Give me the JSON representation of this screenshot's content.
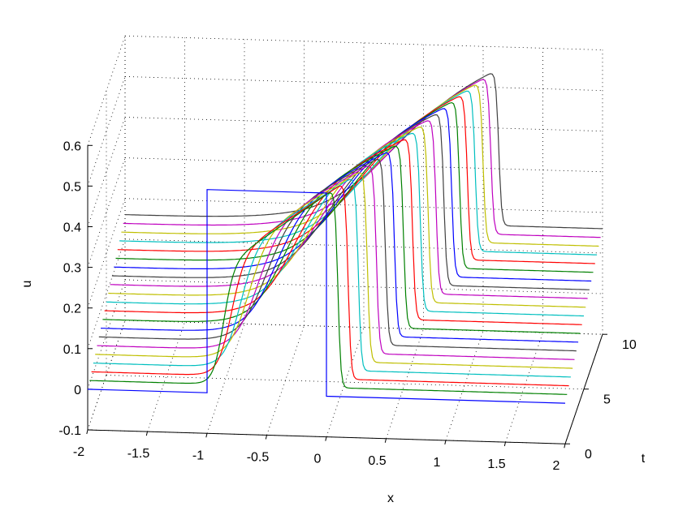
{
  "chart_data": {
    "type": "line",
    "projection": "3d",
    "title": "",
    "xlabel": "x",
    "ylabel": "t",
    "zlabel": "u",
    "xlim": [
      -2,
      2
    ],
    "ylim": [
      0,
      10
    ],
    "zlim": [
      -0.1,
      0.6
    ],
    "grid": true,
    "legend": "none",
    "x_ticks": [
      "-2",
      "-1.5",
      "-1",
      "-0.5",
      "0",
      "0.5",
      "1",
      "1.5",
      "2"
    ],
    "t_ticks": [
      "0",
      "5",
      "10"
    ],
    "u_ticks": [
      "-0.1",
      "0",
      "0.1",
      "0.2",
      "0.3",
      "0.4",
      "0.5",
      "0.6"
    ],
    "series_colors": [
      "#0000ff",
      "#008000",
      "#ff0000",
      "#00bfbf",
      "#bfbf00",
      "#bf00bf",
      "#404040"
    ],
    "initial_condition": {
      "t": 0,
      "u_inside": 0.5,
      "u_outside": 0,
      "x_start": -1,
      "x_end": 0
    },
    "series": [
      {
        "t": 0,
        "left_step_x": -1.0,
        "right_shock_x": 0.0,
        "u_left": 0.0,
        "u_peak": 0.5,
        "u_right": 0.0
      },
      {
        "t": 0.5,
        "left_step_x": -0.97,
        "right_shock_x": 0.08,
        "u_left": 0.008,
        "u_peak": 0.5,
        "u_right": 0.008
      },
      {
        "t": 1,
        "left_step_x": -0.95,
        "right_shock_x": 0.15,
        "u_left": 0.016,
        "u_peak": 0.5,
        "u_right": 0.016
      },
      {
        "t": 1.5,
        "left_step_x": -0.92,
        "right_shock_x": 0.22,
        "u_left": 0.024,
        "u_peak": 0.5,
        "u_right": 0.024
      },
      {
        "t": 2,
        "left_step_x": -0.9,
        "right_shock_x": 0.28,
        "u_left": 0.032,
        "u_peak": 0.5,
        "u_right": 0.032
      },
      {
        "t": 2.5,
        "left_step_x": -0.87,
        "right_shock_x": 0.34,
        "u_left": 0.04,
        "u_peak": 0.5,
        "u_right": 0.04
      },
      {
        "t": 3,
        "left_step_x": -0.85,
        "right_shock_x": 0.4,
        "u_left": 0.048,
        "u_peak": 0.5,
        "u_right": 0.048
      },
      {
        "t": 3.5,
        "left_step_x": -0.82,
        "right_shock_x": 0.46,
        "u_left": 0.056,
        "u_peak": 0.5,
        "u_right": 0.056
      },
      {
        "t": 4,
        "left_step_x": -0.8,
        "right_shock_x": 0.52,
        "u_left": 0.064,
        "u_peak": 0.5,
        "u_right": 0.064
      },
      {
        "t": 4.5,
        "left_step_x": -0.77,
        "right_shock_x": 0.58,
        "u_left": 0.072,
        "u_peak": 0.5,
        "u_right": 0.072
      },
      {
        "t": 5,
        "left_step_x": -0.75,
        "right_shock_x": 0.63,
        "u_left": 0.08,
        "u_peak": 0.5,
        "u_right": 0.08
      },
      {
        "t": 5.5,
        "left_step_x": -0.72,
        "right_shock_x": 0.68,
        "u_left": 0.088,
        "u_peak": 0.5,
        "u_right": 0.088
      },
      {
        "t": 6,
        "left_step_x": -0.7,
        "right_shock_x": 0.73,
        "u_left": 0.096,
        "u_peak": 0.5,
        "u_right": 0.096
      },
      {
        "t": 6.5,
        "left_step_x": -0.67,
        "right_shock_x": 0.78,
        "u_left": 0.104,
        "u_peak": 0.5,
        "u_right": 0.104
      },
      {
        "t": 7,
        "left_step_x": -0.65,
        "right_shock_x": 0.83,
        "u_left": 0.112,
        "u_peak": 0.5,
        "u_right": 0.112
      },
      {
        "t": 7.5,
        "left_step_x": -0.62,
        "right_shock_x": 0.88,
        "u_left": 0.12,
        "u_peak": 0.5,
        "u_right": 0.12
      },
      {
        "t": 8,
        "left_step_x": -0.6,
        "right_shock_x": 0.93,
        "u_left": 0.128,
        "u_peak": 0.5,
        "u_right": 0.128
      },
      {
        "t": 8.5,
        "left_step_x": -0.57,
        "right_shock_x": 0.98,
        "u_left": 0.136,
        "u_peak": 0.5,
        "u_right": 0.136
      },
      {
        "t": 9,
        "left_step_x": -0.55,
        "right_shock_x": 1.03,
        "u_left": 0.144,
        "u_peak": 0.5,
        "u_right": 0.144
      },
      {
        "t": 9.5,
        "left_step_x": -0.52,
        "right_shock_x": 1.08,
        "u_left": 0.152,
        "u_peak": 0.5,
        "u_right": 0.152
      },
      {
        "t": 10,
        "left_step_x": -0.5,
        "right_shock_x": 1.13,
        "u_left": 0.16,
        "u_peak": 0.5,
        "u_right": 0.16
      }
    ]
  }
}
